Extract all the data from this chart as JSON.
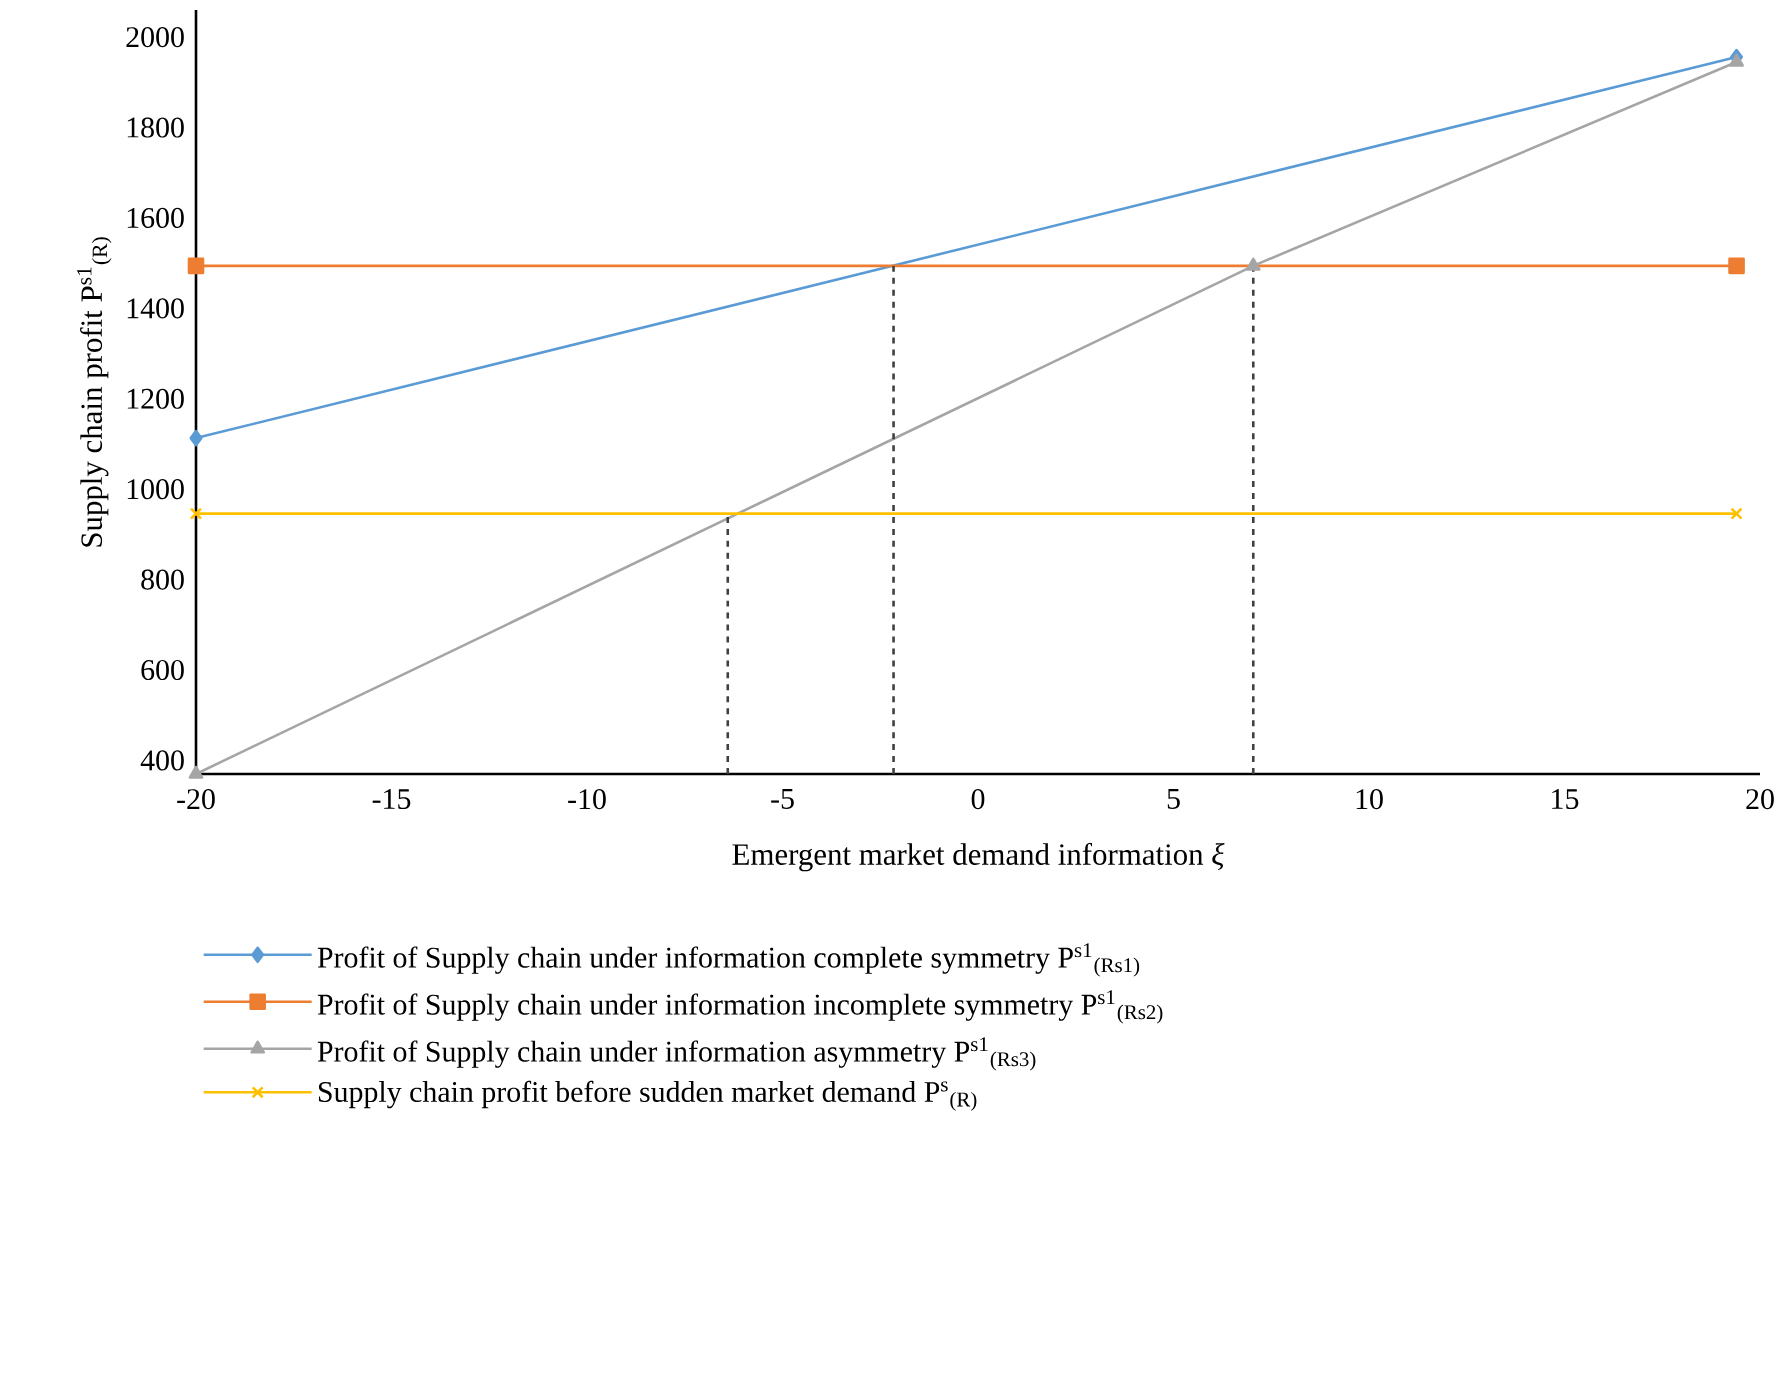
{
  "chart_data": {
    "type": "line",
    "xlabel": "Emergent market demand information *ξ*",
    "ylabel": "Supply chain profit P$^{s1}$$_{(R)}$",
    "xlim": [
      -20,
      20
    ],
    "xticks": [
      -20,
      -15,
      -10,
      -5,
      0,
      5,
      10,
      15,
      20
    ],
    "ylim": [
      370,
      2060
    ],
    "yticks": [
      400,
      600,
      800,
      1000,
      1200,
      1400,
      1600,
      1800,
      2000
    ],
    "legend": "bottom",
    "line_style": "solid",
    "series": [
      {
        "name": "Profit of Supply chain under information complete symmetry P$^{s1}$$_{(Rs1)}$",
        "color": "#5b9bd5",
        "marker": "diamond",
        "x": [
          -20,
          19.4
        ],
        "values": [
          1113,
          1956
        ]
      },
      {
        "name": "Profit of Supply chain under information incomplete symmetry P$^{s1}$$_{(Rs2)}$",
        "color": "#ed7d31",
        "marker": "square",
        "x": [
          -20,
          19.4
        ],
        "values": [
          1494,
          1494
        ]
      },
      {
        "name": "Profit of Supply chain under information asymmetry P$^{s1}$$_{(Rs3)}$",
        "color": "#a5a5a5",
        "marker": "triangle",
        "x": [
          -20,
          7.04,
          19.4
        ],
        "values": [
          370,
          1494,
          1945
        ]
      },
      {
        "name": "Supply chain profit before sudden market demand P$^{s}$$_{(R)}$",
        "color": "#ffc000",
        "marker": "cross",
        "x": [
          -20,
          19.4
        ],
        "values": [
          946,
          946
        ]
      },
      {
        "color": "#404040",
        "marker": "none",
        "line_style": "dashed",
        "x": [
          -6.4,
          -6.4
        ],
        "values": [
          370,
          946
        ]
      },
      {
        "color": "#404040",
        "marker": "none",
        "line_style": "dashed",
        "x": [
          -2.16,
          -2.16
        ],
        "values": [
          370,
          1494
        ]
      },
      {
        "color": "#404040",
        "marker": "none",
        "line_style": "dashed",
        "x": [
          7.04,
          7.04
        ],
        "values": [
          370,
          1494
        ]
      }
    ]
  }
}
